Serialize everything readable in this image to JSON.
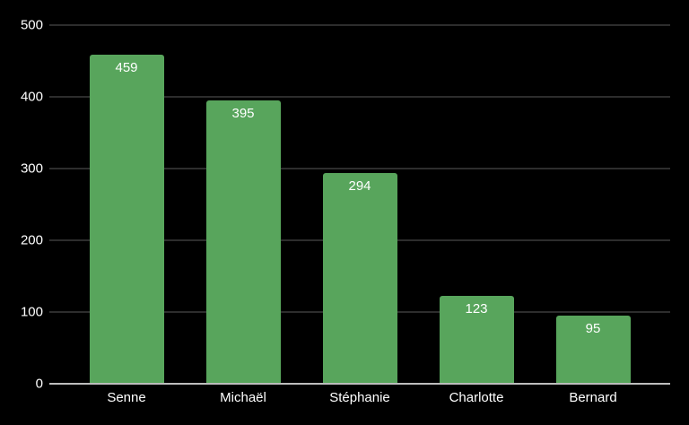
{
  "chart_data": {
    "type": "bar",
    "categories": [
      "Senne",
      "Michaël",
      "Stéphanie",
      "Charlotte",
      "Bernard"
    ],
    "values": [
      459,
      395,
      294,
      123,
      95
    ],
    "title": "",
    "xlabel": "",
    "ylabel": "",
    "ylim": [
      0,
      500
    ],
    "yticks": [
      0,
      100,
      200,
      300,
      400,
      500
    ],
    "grid": true,
    "legend": false,
    "value_labels": [
      "459",
      "395",
      "294",
      "123",
      "95"
    ],
    "colors": {
      "bar": "#58a55c",
      "background": "#000000",
      "gridline": "#2d2d2d",
      "axis_line": "#bdbdbd",
      "text": "#ffffff"
    }
  }
}
